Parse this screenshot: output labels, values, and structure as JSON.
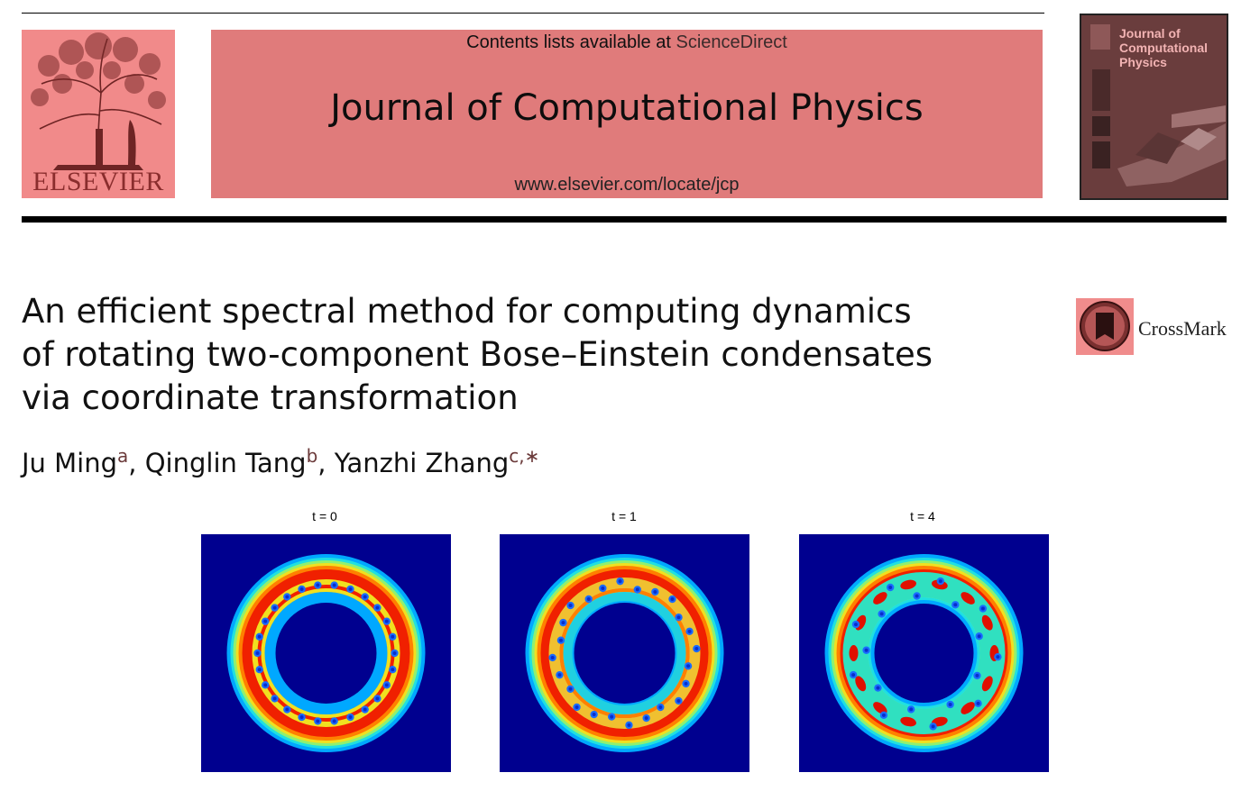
{
  "header": {
    "contents_text": "Contents lists available at",
    "sciencedirect_link": "ScienceDirect",
    "journal_title": "Journal of Computational Physics",
    "journal_url": "www.elsevier.com/locate/jcp",
    "publisher_logo_text": "ELSEVIER",
    "cover_title": "Journal of Computational Physics"
  },
  "article": {
    "title_line1": "An efficient spectral method for computing dynamics",
    "title_line2": "of rotating two-component Bose–Einstein condensates",
    "title_line3": "via coordinate transformation",
    "crossmark_label": "CrossMark",
    "authors": [
      {
        "name": "Ju Ming",
        "affil": "a"
      },
      {
        "name": "Qinglin Tang",
        "affil": "b"
      },
      {
        "name": "Yanzhi Zhang",
        "affil": "c,∗"
      }
    ]
  },
  "figure": {
    "panels": [
      {
        "label": "t = 0",
        "vortices": 26
      },
      {
        "label": "t = 1",
        "vortices": 24
      },
      {
        "label": "t = 4",
        "vortices": 18
      }
    ]
  },
  "colors": {
    "banner": "#e07b7b",
    "logo": "#f18a8a",
    "panel_background": "#00008f"
  }
}
